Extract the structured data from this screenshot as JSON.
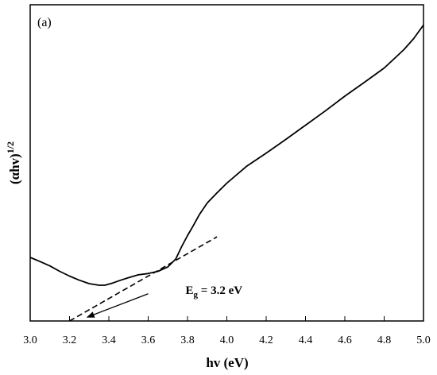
{
  "chart_data": {
    "type": "line",
    "panel_label": "(a)",
    "xlabel": "hv (eV)",
    "ylabel_base": "(αhv)",
    "ylabel_sup": "1/2",
    "xlim": [
      3.0,
      5.0
    ],
    "ylim": [
      0,
      1
    ],
    "x_ticks": [
      "3.0",
      "3.2",
      "3.4",
      "3.6",
      "3.8",
      "4.0",
      "4.2",
      "4.4",
      "4.6",
      "4.8",
      "5.0"
    ],
    "y_ticks_shown": false,
    "grid": false,
    "series": [
      {
        "style": "solid",
        "color": "#000000",
        "x": [
          3.0,
          3.05,
          3.1,
          3.15,
          3.2,
          3.25,
          3.3,
          3.35,
          3.38,
          3.42,
          3.46,
          3.5,
          3.55,
          3.6,
          3.65,
          3.7,
          3.74,
          3.77,
          3.8,
          3.83,
          3.86,
          3.9,
          3.95,
          4.0,
          4.1,
          4.2,
          4.3,
          4.4,
          4.5,
          4.6,
          4.7,
          4.8,
          4.85,
          4.9,
          4.95,
          5.0
        ],
        "y": [
          0.201,
          0.188,
          0.174,
          0.157,
          0.142,
          0.129,
          0.118,
          0.113,
          0.113,
          0.12,
          0.129,
          0.137,
          0.146,
          0.15,
          0.157,
          0.171,
          0.196,
          0.235,
          0.27,
          0.302,
          0.336,
          0.373,
          0.405,
          0.436,
          0.489,
          0.531,
          0.574,
          0.619,
          0.664,
          0.711,
          0.755,
          0.8,
          0.829,
          0.858,
          0.893,
          0.936
        ]
      },
      {
        "style": "dashed",
        "color": "#000000",
        "x": [
          3.2,
          3.95
        ],
        "y": [
          0.0,
          0.266
        ]
      }
    ],
    "annotation": {
      "text_main": "E",
      "text_sub": "g",
      "text_rest": " = 3.2 eV",
      "text_x": 3.79,
      "text_y": 0.085,
      "arrow_from": [
        3.6,
        0.086
      ],
      "arrow_to": [
        3.29,
        0.012
      ]
    }
  }
}
